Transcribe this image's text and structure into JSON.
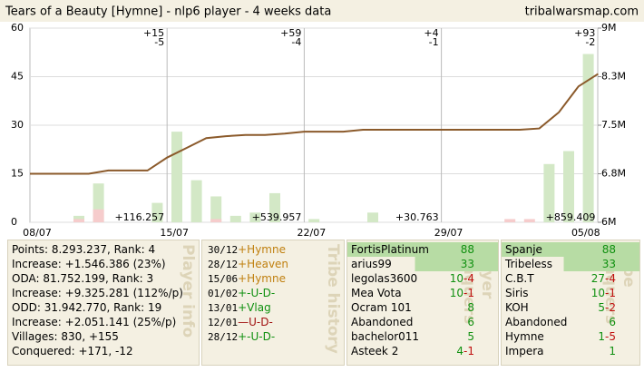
{
  "header": {
    "title": "Tears of a Beauty [Hymne] - nlp6 player  - 4 weeks data",
    "site": "tribalwarsmap.com"
  },
  "chart_data": {
    "type": "bar",
    "categories": [
      "08/07",
      null,
      null,
      null,
      null,
      null,
      null,
      "15/07",
      null,
      null,
      null,
      null,
      null,
      null,
      "22/07",
      null,
      null,
      null,
      null,
      null,
      null,
      "29/07",
      null,
      null,
      null,
      null,
      null,
      null,
      "05/08",
      null
    ],
    "series": [
      {
        "type": "bar",
        "color": "#d3e8c6",
        "values": [
          0,
          0,
          2,
          12,
          0,
          0,
          6,
          28,
          13,
          8,
          2,
          3,
          9,
          0,
          1,
          0,
          0,
          3,
          0,
          0,
          0,
          0,
          0,
          0,
          0,
          0,
          18,
          22,
          52,
          0
        ]
      },
      {
        "type": "bar",
        "color": "#f6cccc",
        "values": [
          0,
          0,
          1,
          4,
          0,
          0,
          0,
          0,
          0,
          1,
          0,
          0,
          0,
          0,
          0,
          0,
          0,
          0,
          0,
          0,
          0,
          0,
          0,
          0,
          1,
          1,
          0,
          0,
          0,
          0
        ]
      },
      {
        "type": "line",
        "axis": "y2",
        "color": "#8b5a2b",
        "values": [
          6750000,
          6750000,
          6750000,
          6750000,
          6800000,
          6800000,
          6800000,
          7000000,
          7150000,
          7300000,
          7330000,
          7350000,
          7350000,
          7370000,
          7400000,
          7400000,
          7400000,
          7430000,
          7430000,
          7430000,
          7430000,
          7430000,
          7430000,
          7430000,
          7430000,
          7430000,
          7450000,
          7700000,
          8100000,
          8293237
        ]
      }
    ],
    "ylim": [
      0,
      60
    ],
    "yticks": [
      0,
      15,
      30,
      45,
      60
    ],
    "y2lim": [
      6000000,
      9000000
    ],
    "y2ticks": [
      {
        "value": 6000000,
        "label": "6M"
      },
      {
        "value": 6750000,
        "label": "6.8M"
      },
      {
        "value": 7500000,
        "label": "7.5M"
      },
      {
        "value": 8250000,
        "label": "8.3M"
      },
      {
        "value": 9000000,
        "label": "9M"
      }
    ],
    "grid": true,
    "weeks": [
      {
        "gain": "+15",
        "loss": "-5",
        "points": "+116.257"
      },
      {
        "gain": "+59",
        "loss": "-4",
        "points": "+539.957"
      },
      {
        "gain": "+4",
        "loss": "-1",
        "points": "+30.763"
      },
      {
        "gain": "+93",
        "loss": "-2",
        "points": "+859.409"
      }
    ]
  },
  "player_info": {
    "label": "Player info",
    "lines": [
      "Points: 8.293.237, Rank: 4",
      "Increase: +1.546.386 (23%)",
      "ODA: 81.752.199, Rank: 3",
      "Increase: +9.325.281 (112%/p)",
      "ODD: 31.942.770, Rank: 19",
      "Increase: +2.051.141 (25%/p)",
      "Villages: 830, +155",
      "Conquered: +171, -12"
    ]
  },
  "tribe_history": {
    "label": "Tribe history",
    "rows": [
      {
        "date": "30/12",
        "event": "+Hymne",
        "color": "#c08010"
      },
      {
        "date": "28/12",
        "event": "+Heaven",
        "color": "#c08010"
      },
      {
        "date": "15/06",
        "event": "+Hymne",
        "color": "#c08010"
      },
      {
        "date": "01/02",
        "event": "+-U-D-",
        "color": "#109010"
      },
      {
        "date": "13/01",
        "event": "+Vlag",
        "color": "#109010"
      },
      {
        "date": "12/01",
        "event": "—U-D-",
        "color": "#a01010"
      },
      {
        "date": "28/12",
        "event": "+-U-D-",
        "color": "#109010"
      }
    ]
  },
  "player_conquers": {
    "label": "Player conquers",
    "rows": [
      {
        "name": "FortisPlatinum",
        "gain": "88"
      },
      {
        "name": "arius99",
        "gain": "33"
      },
      {
        "name": "legolas3600",
        "gain": "10",
        "loss": "-4"
      },
      {
        "name": "Mea Vota",
        "gain": "10",
        "loss": "-1"
      },
      {
        "name": "Ocram 101",
        "gain": "8"
      },
      {
        "name": "Abandoned",
        "gain": "6"
      },
      {
        "name": "bachelor011",
        "gain": "5"
      },
      {
        "name": "Asteek 2",
        "gain": "4",
        "loss": "-1"
      }
    ]
  },
  "tribe_conquers": {
    "label": "Tribe conquers",
    "rows": [
      {
        "name": "Spanje",
        "gain": "88"
      },
      {
        "name": "Tribeless",
        "gain": "33"
      },
      {
        "name": "C.B.T",
        "gain": "27",
        "loss": "-4"
      },
      {
        "name": "Siris",
        "gain": "10",
        "loss": "-1"
      },
      {
        "name": "KOH",
        "gain": "5",
        "loss": "-2"
      },
      {
        "name": "Abandoned",
        "gain": "6"
      },
      {
        "name": "Hymne",
        "gain": "1",
        "loss": "-5"
      },
      {
        "name": "Impera",
        "gain": "1"
      }
    ]
  }
}
